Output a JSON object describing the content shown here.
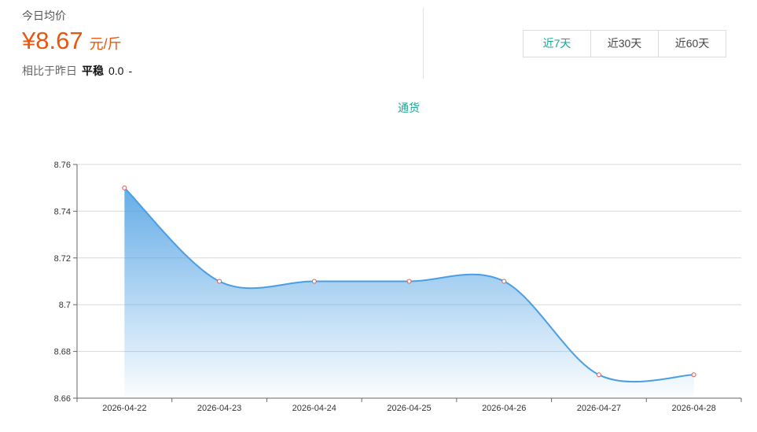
{
  "summary": {
    "today_label": "今日均价",
    "price": "¥8.67",
    "unit": "元/斤",
    "compare_label": "相比于昨日",
    "trend": "平稳",
    "diff": "0.0",
    "arrow": "-"
  },
  "tabs": [
    {
      "label": "近7天",
      "active": true
    },
    {
      "label": "近30天",
      "active": false
    },
    {
      "label": "近60天",
      "active": false
    }
  ],
  "colors": {
    "accent": "#1aa690",
    "price": "#e8560f",
    "line": "#4a9ee3",
    "marker": "#e05a4f"
  },
  "chart_data": {
    "type": "area",
    "title": "通货",
    "x": [
      "2026-04-22",
      "2026-04-23",
      "2026-04-24",
      "2026-04-25",
      "2026-04-26",
      "2026-04-27",
      "2026-04-28"
    ],
    "series": [
      {
        "values": [
          8.75,
          8.71,
          8.71,
          8.71,
          8.71,
          8.67,
          8.67
        ]
      }
    ],
    "ylim": [
      8.66,
      8.76
    ],
    "yticks": [
      "8.66",
      "8.68",
      "8.7",
      "8.72",
      "8.74",
      "8.76"
    ],
    "grid": true,
    "smooth": true
  }
}
